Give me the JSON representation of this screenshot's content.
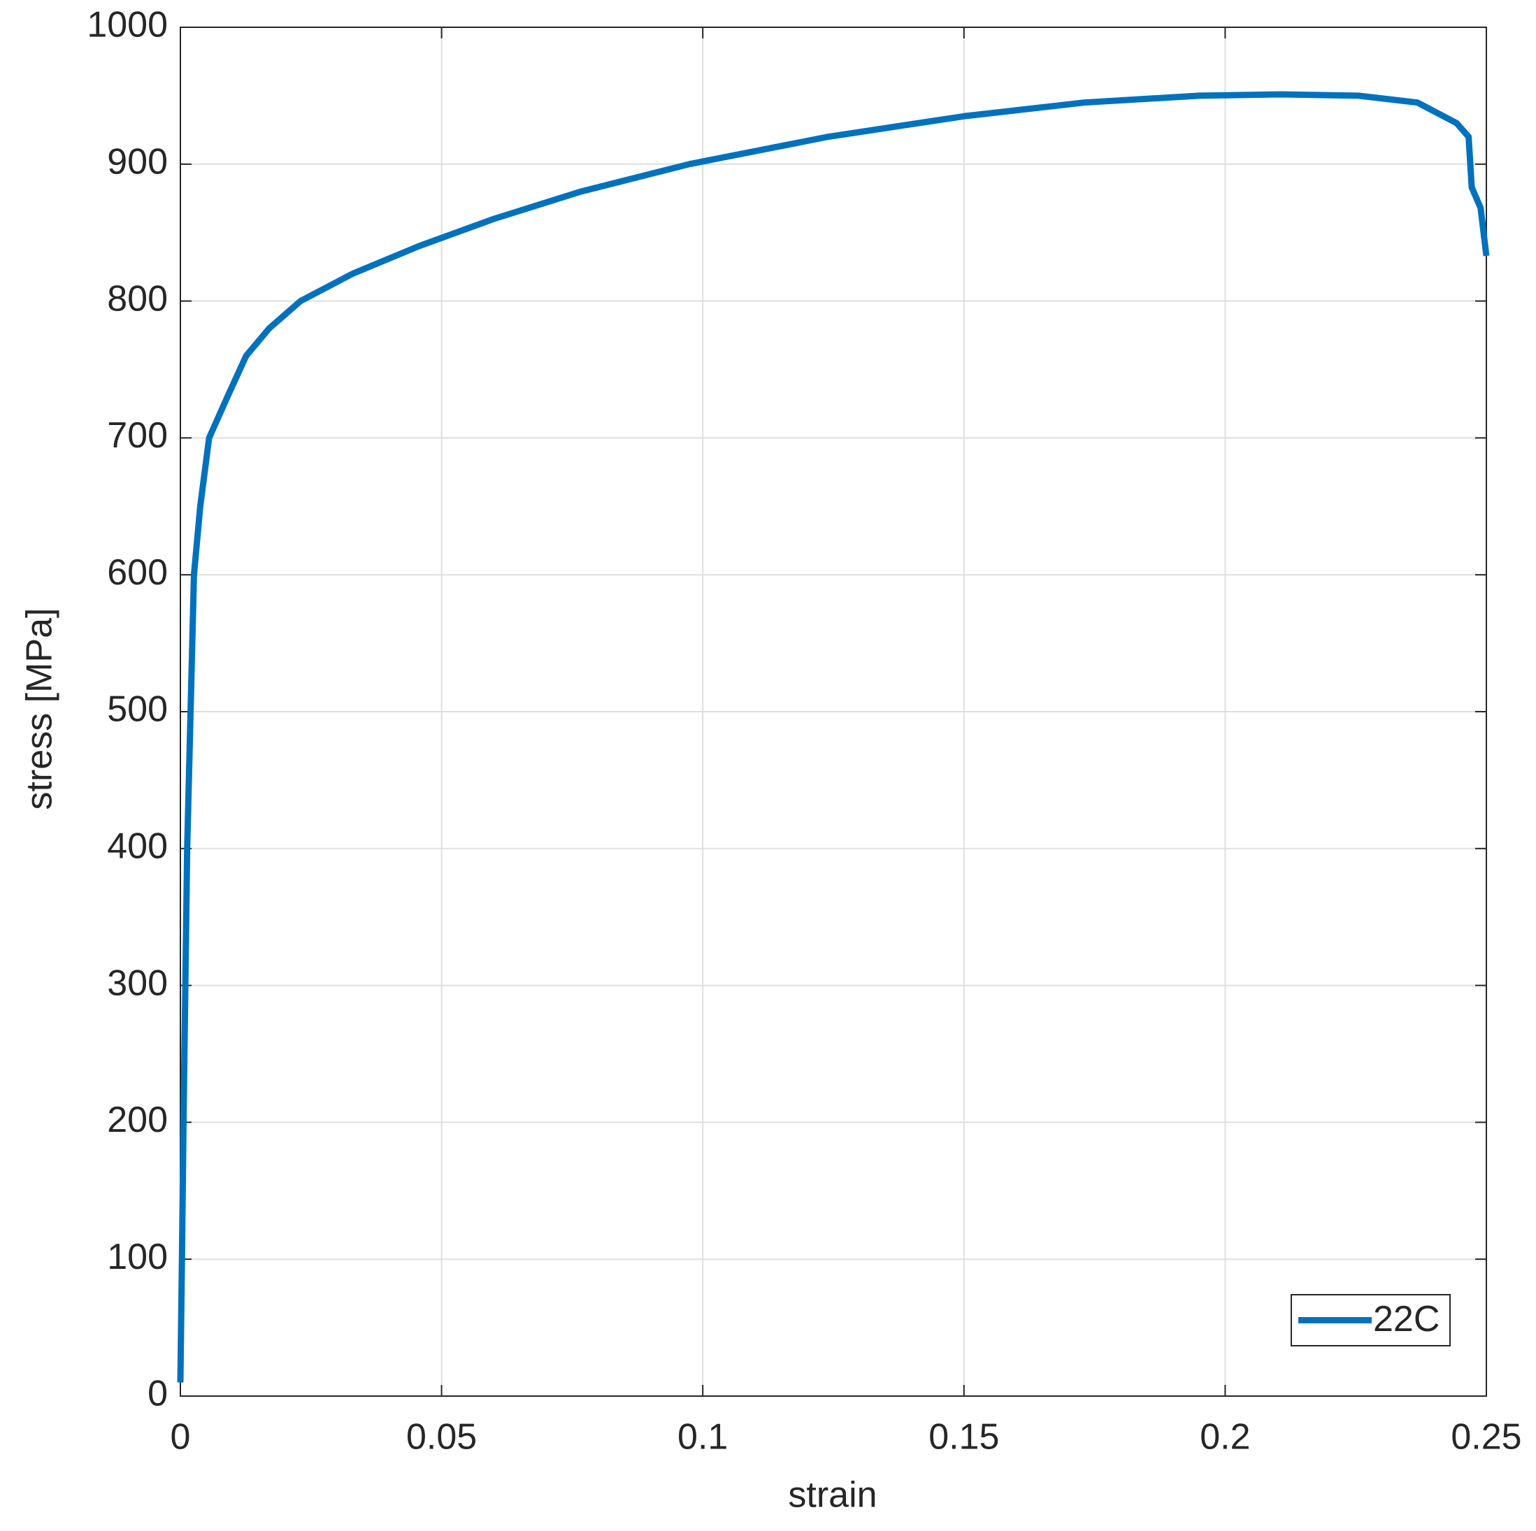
{
  "chart_data": {
    "type": "line",
    "x_label": "strain",
    "y_label": "stress [MPa]",
    "xlim": [
      0,
      0.25
    ],
    "ylim": [
      0,
      1000
    ],
    "xticks": [
      0,
      0.05,
      0.1,
      0.15,
      0.2,
      0.25
    ],
    "yticks": [
      0,
      100,
      200,
      300,
      400,
      500,
      600,
      700,
      800,
      900,
      1000
    ],
    "grid": true,
    "legend_position": "southeast",
    "series": [
      {
        "name": "22C",
        "color": "#0072bd",
        "x": [
          0,
          0.0003,
          0.0006,
          0.0013,
          0.0026,
          0.0038,
          0.0055,
          0.009,
          0.0126,
          0.017,
          0.023,
          0.033,
          0.0456,
          0.06,
          0.0767,
          0.0974,
          0.124,
          0.15,
          0.173,
          0.195,
          0.2105,
          0.2255,
          0.2368,
          0.2443,
          0.2466,
          0.2472,
          0.2489,
          0.25
        ],
        "values": [
          10,
          100,
          200,
          400,
          600,
          650,
          700,
          730,
          760,
          780,
          800,
          820,
          840,
          860,
          880,
          900,
          920,
          935,
          945,
          950,
          951,
          950,
          945,
          930,
          920,
          883,
          868,
          833
        ]
      }
    ]
  }
}
